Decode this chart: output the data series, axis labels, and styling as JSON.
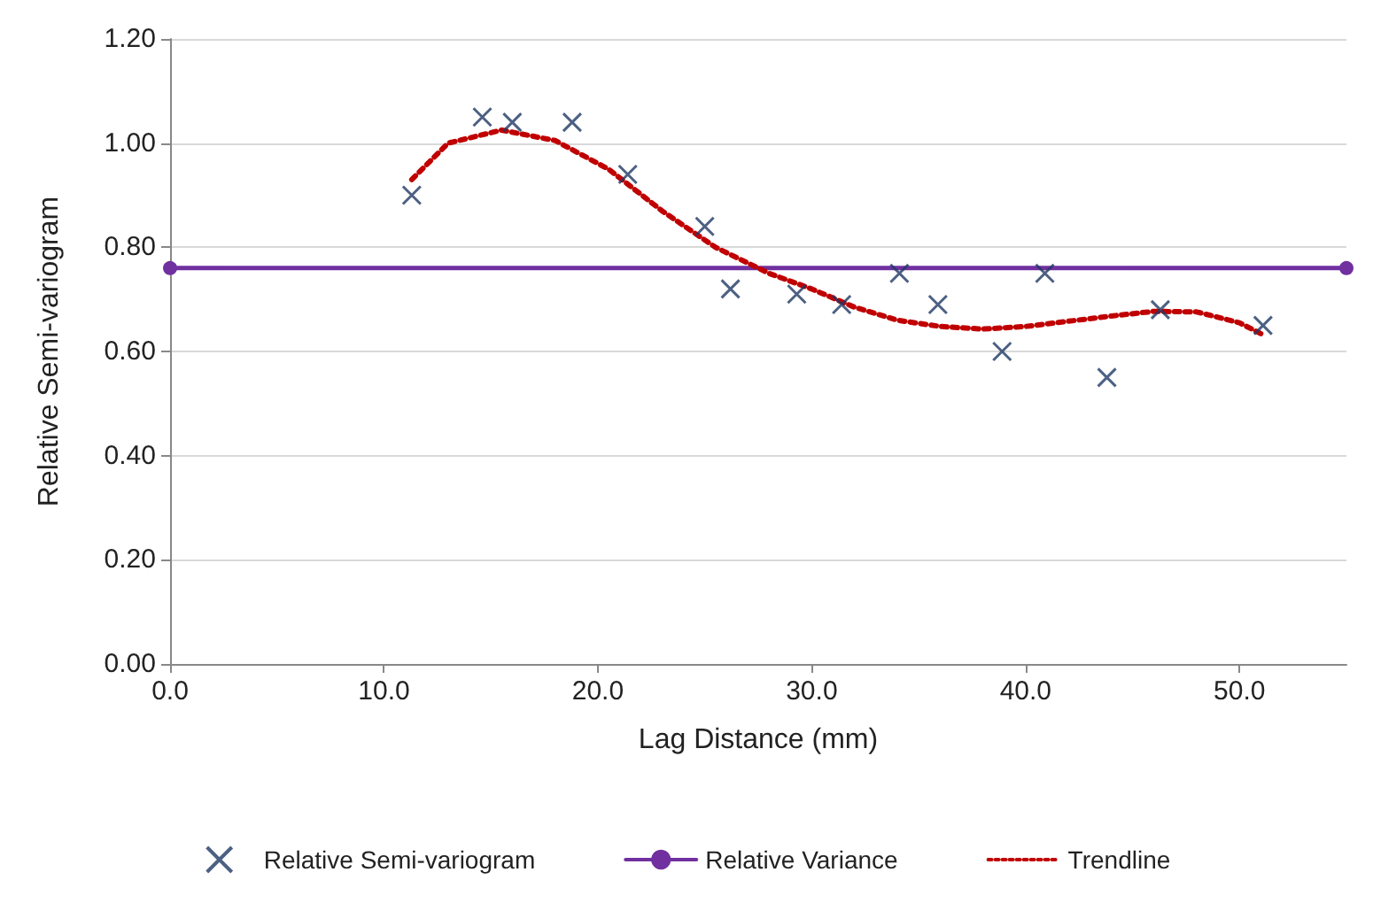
{
  "chart_data": {
    "type": "scatter",
    "xlabel": "Lag Distance (mm)",
    "ylabel": "Relative Semi-variogram",
    "xlim": [
      0,
      55
    ],
    "xticks": [
      {
        "value": 0,
        "label": "0.0"
      },
      {
        "value": 10,
        "label": "10.0"
      },
      {
        "value": 20,
        "label": "20.0"
      },
      {
        "value": 30,
        "label": "30.0"
      },
      {
        "value": 40,
        "label": "40.0"
      },
      {
        "value": 50,
        "label": "50.0"
      }
    ],
    "ylim": [
      0,
      1.2
    ],
    "yticks": [
      {
        "value": 0,
        "label": "0.00"
      },
      {
        "value": 0.2,
        "label": "0.20"
      },
      {
        "value": 0.4,
        "label": "0.40"
      },
      {
        "value": 0.6,
        "label": "0.60"
      },
      {
        "value": 0.8,
        "label": "0.80"
      },
      {
        "value": 1,
        "label": "1.00"
      },
      {
        "value": 1.2,
        "label": "1.20"
      }
    ],
    "grid": "y",
    "legend": "bottom",
    "series": [
      {
        "name": "Relative Semi-variogram",
        "marker": "cross",
        "color": "#1f3864",
        "x": [
          11.3,
          14.6,
          16.0,
          18.8,
          21.4,
          25.0,
          26.2,
          29.3,
          31.4,
          34.1,
          35.9,
          38.9,
          40.9,
          43.8,
          46.3,
          51.1
        ],
        "values": [
          0.9,
          1.05,
          1.04,
          1.04,
          0.94,
          0.84,
          0.72,
          0.71,
          0.69,
          0.75,
          0.69,
          0.6,
          0.75,
          0.55,
          0.68,
          0.65
        ]
      },
      {
        "name": "Relative Variance",
        "type": "line",
        "marker": "circle",
        "line_style": "solid",
        "color": "#7030a0",
        "x": [
          0,
          55
        ],
        "values": [
          0.76,
          0.76
        ]
      },
      {
        "name": "Trendline",
        "type": "line",
        "marker": "none",
        "line_style": "dotted",
        "color": "#c00000",
        "x": [
          11.3,
          13,
          15.5,
          18,
          20.5,
          23,
          25.5,
          28,
          30,
          32,
          34,
          36,
          38,
          40,
          42,
          44,
          46,
          48,
          50,
          51.1
        ],
        "values": [
          0.93,
          1.0,
          1.025,
          1.005,
          0.95,
          0.87,
          0.8,
          0.75,
          0.72,
          0.685,
          0.66,
          0.648,
          0.643,
          0.648,
          0.658,
          0.668,
          0.677,
          0.676,
          0.655,
          0.632
        ]
      }
    ]
  }
}
